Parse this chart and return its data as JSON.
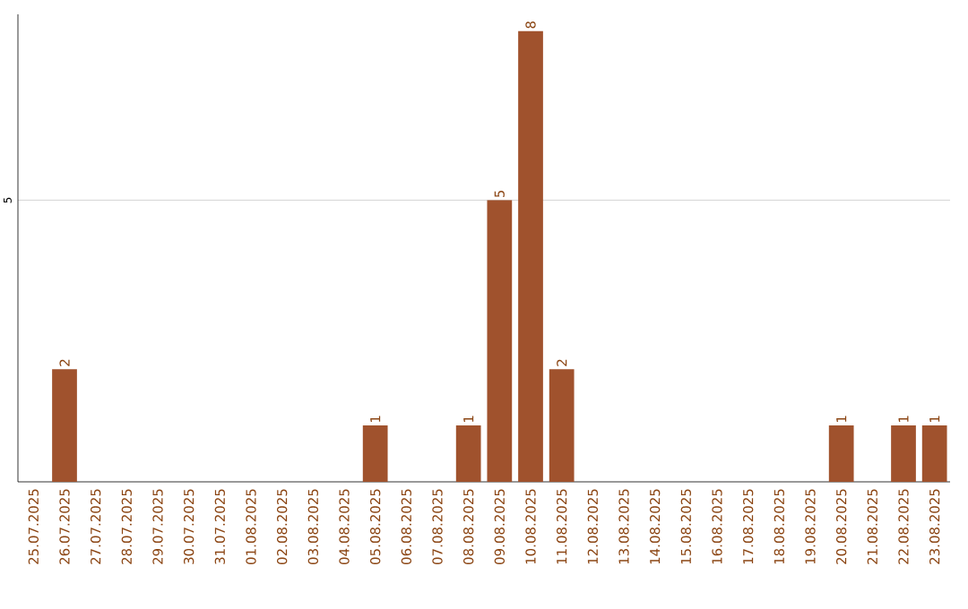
{
  "chart_data": {
    "type": "bar",
    "categories": [
      "25.07.2025",
      "26.07.2025",
      "27.07.2025",
      "28.07.2025",
      "29.07.2025",
      "30.07.2025",
      "31.07.2025",
      "01.08.2025",
      "02.08.2025",
      "03.08.2025",
      "04.08.2025",
      "05.08.2025",
      "06.08.2025",
      "07.08.2025",
      "08.08.2025",
      "09.08.2025",
      "10.08.2025",
      "11.08.2025",
      "12.08.2025",
      "13.08.2025",
      "14.08.2025",
      "15.08.2025",
      "16.08.2025",
      "17.08.2025",
      "18.08.2025",
      "19.08.2025",
      "20.08.2025",
      "21.08.2025",
      "22.08.2025",
      "23.08.2025"
    ],
    "values": [
      0,
      2,
      0,
      0,
      0,
      0,
      0,
      0,
      0,
      0,
      0,
      1,
      0,
      0,
      1,
      5,
      8,
      2,
      0,
      0,
      0,
      0,
      0,
      0,
      0,
      0,
      1,
      0,
      1,
      1
    ],
    "value_labels": [
      null,
      "2",
      null,
      null,
      null,
      null,
      null,
      null,
      null,
      null,
      null,
      "1",
      null,
      null,
      "1",
      "5",
      "8",
      "2",
      null,
      null,
      null,
      null,
      null,
      null,
      null,
      null,
      "1",
      null,
      "1",
      "1"
    ],
    "color": "#a0522d",
    "ylim": [
      0,
      8.3
    ],
    "yticks": [
      5
    ],
    "grid": "y"
  }
}
